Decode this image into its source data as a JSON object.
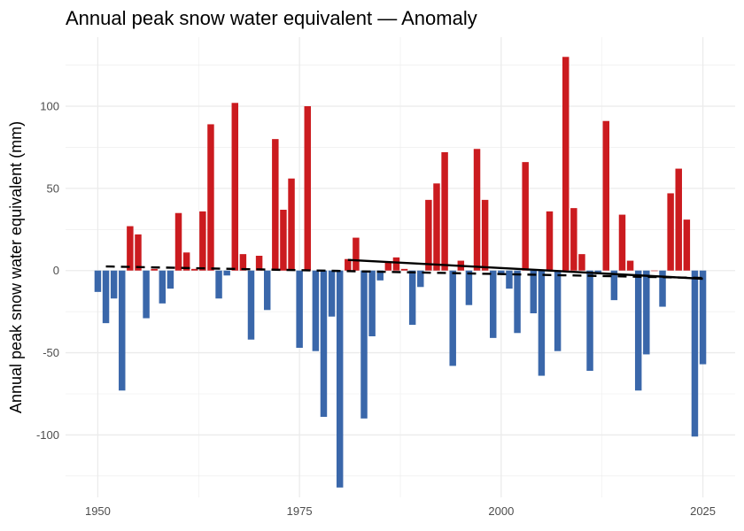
{
  "chart_data": {
    "type": "bar",
    "title": "Annual peak snow water equivalent — Anomaly",
    "xlabel": "",
    "ylabel": "Annual peak snow water equivalent (mm)",
    "xlim": [
      1946,
      2029
    ],
    "ylim": [
      -138,
      142
    ],
    "x_ticks": [
      1950,
      1975,
      2000,
      2025
    ],
    "y_ticks": [
      100,
      50,
      0,
      -50,
      -100
    ],
    "grid": true,
    "legend": "none",
    "colors": {
      "positive": "#cb1b1f",
      "negative": "#3a67aa",
      "trend": "#000000",
      "gridline": "#ebebeb"
    },
    "x": [
      1950,
      1951,
      1952,
      1953,
      1954,
      1955,
      1956,
      1957,
      1958,
      1959,
      1960,
      1961,
      1962,
      1963,
      1964,
      1965,
      1966,
      1967,
      1968,
      1969,
      1970,
      1971,
      1972,
      1973,
      1974,
      1975,
      1976,
      1977,
      1978,
      1979,
      1980,
      1981,
      1982,
      1983,
      1984,
      1985,
      1986,
      1987,
      1988,
      1989,
      1990,
      1991,
      1992,
      1993,
      1994,
      1995,
      1996,
      1997,
      1998,
      1999,
      2000,
      2001,
      2002,
      2003,
      2004,
      2005,
      2006,
      2007,
      2008,
      2009,
      2010,
      2011,
      2012,
      2013,
      2014,
      2015,
      2016,
      2017,
      2018,
      2019,
      2020,
      2021,
      2022,
      2023,
      2024,
      2025
    ],
    "values": [
      -13,
      -32,
      -17,
      -73,
      27,
      22,
      -29,
      1,
      -20,
      -11,
      35,
      11,
      1,
      36,
      89,
      -17,
      -3,
      102,
      10,
      -42,
      9,
      -24,
      80,
      37,
      56,
      -47,
      100,
      -49,
      -89,
      -28,
      -132,
      7,
      20,
      -90,
      -40,
      -6,
      5,
      8,
      1,
      -33,
      -10,
      43,
      53,
      72,
      -58,
      6,
      -21,
      74,
      43,
      -41,
      -2,
      -11,
      -38,
      66,
      -26,
      -64,
      36,
      -49,
      130,
      38,
      10,
      -61,
      -2,
      91,
      -18,
      34,
      6,
      -73,
      -51,
      0,
      -22,
      47,
      62,
      31,
      -101,
      -57
    ],
    "trend_dashed": {
      "x": [
        1951,
        2025
      ],
      "y": [
        2.5,
        -4.5
      ]
    },
    "trend_solid": {
      "x": [
        1981,
        2025
      ],
      "y": [
        6.5,
        -5
      ]
    }
  }
}
